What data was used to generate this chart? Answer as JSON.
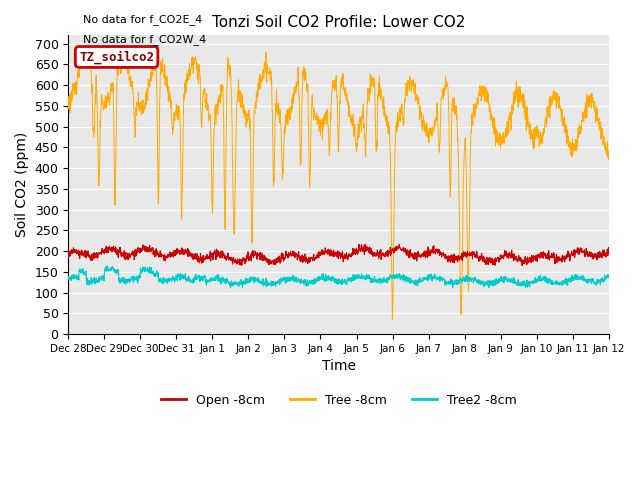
{
  "title": "Tonzi Soil CO2 Profile: Lower CO2",
  "xlabel": "Time",
  "ylabel": "Soil CO2 (ppm)",
  "ylim": [
    0,
    720
  ],
  "yticks": [
    0,
    50,
    100,
    150,
    200,
    250,
    300,
    350,
    400,
    450,
    500,
    550,
    600,
    650,
    700
  ],
  "annotation1": "No data for f_CO2E_4",
  "annotation2": "No data for f_CO2W_4",
  "legend_label": "TZ_soilco2",
  "line_colors": {
    "open": "#cc0000",
    "tree": "#ffaa00",
    "tree2": "#00cccc"
  },
  "legend_entries": [
    "Open -8cm",
    "Tree -8cm",
    "Tree2 -8cm"
  ],
  "background_color": "#e8e8e8",
  "n_points": 2000,
  "x_start": 0,
  "x_end": 15,
  "xtick_labels": [
    "Dec 28",
    "Dec 29",
    "Dec 30",
    "Dec 31",
    "Jan 1",
    "Jan 2",
    "Jan 3",
    "Jan 4",
    "Jan 5",
    "Jan 6",
    "Jan 7",
    "Jan 8",
    "Jan 9",
    "Jan 10",
    "Jan 11",
    "Jan 12"
  ],
  "xtick_positions": [
    0,
    1,
    2,
    3,
    4,
    5,
    6,
    7,
    8,
    9,
    10,
    11,
    12,
    13,
    14,
    15
  ],
  "figsize": [
    6.4,
    4.8
  ],
  "dpi": 100
}
